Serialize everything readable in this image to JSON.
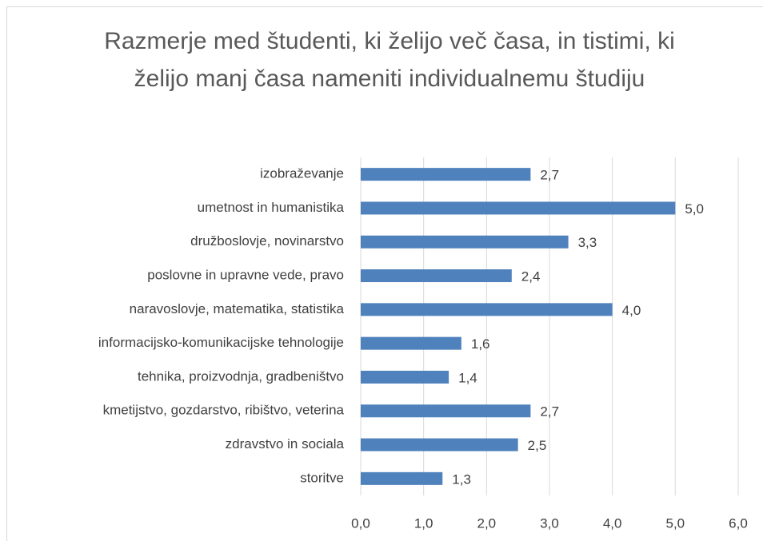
{
  "chart_data": {
    "type": "bar",
    "orientation": "horizontal",
    "title": "Razmerje med študenti, ki želijo več časa, in tistimi, ki želijo manj časa nameniti individualnemu študiju",
    "categories": [
      "izobraževanje",
      "umetnost in humanistika",
      "družboslovje, novinarstvo",
      "poslovne in upravne vede, pravo",
      "naravoslovje, matematika, statistika",
      "informacijsko-komunikacijske tehnologije",
      "tehnika, proizvodnja, gradbeništvo",
      "kmetijstvo, gozdarstvo, ribištvo, veterina",
      "zdravstvo in sociala",
      "storitve"
    ],
    "values": [
      2.7,
      5.0,
      3.3,
      2.4,
      4.0,
      1.6,
      1.4,
      2.7,
      2.5,
      1.3
    ],
    "value_labels": [
      "2,7",
      "5,0",
      "3,3",
      "2,4",
      "4,0",
      "1,6",
      "1,4",
      "2,7",
      "2,5",
      "1,3"
    ],
    "color": "#4f81bd",
    "xlim": [
      0,
      6
    ],
    "xticks": [
      {
        "value": 0,
        "label": "0,0"
      },
      {
        "value": 1,
        "label": "1,0"
      },
      {
        "value": 2,
        "label": "2,0"
      },
      {
        "value": 3,
        "label": "3,0"
      },
      {
        "value": 4,
        "label": "4,0"
      },
      {
        "value": 5,
        "label": "5,0"
      },
      {
        "value": 6,
        "label": "6,0"
      }
    ],
    "grid": true
  }
}
